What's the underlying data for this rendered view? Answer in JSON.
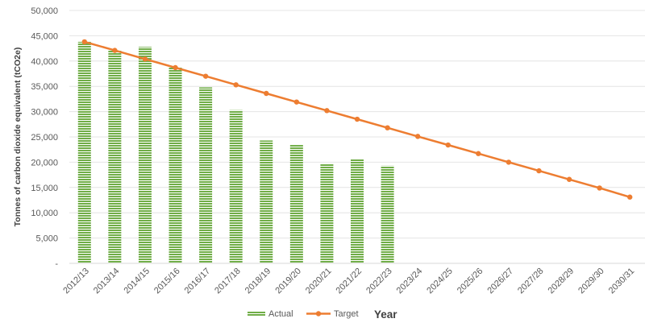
{
  "chart_data": {
    "type": "bar",
    "categories": [
      "2012/13",
      "2013/14",
      "2014/15",
      "2015/16",
      "2016/17",
      "2017/18",
      "2018/19",
      "2019/20",
      "2020/21",
      "2021/22",
      "2022/23",
      "2023/24",
      "2024/25",
      "2025/26",
      "2026/27",
      "2027/28",
      "2028/29",
      "2029/30",
      "2030/31"
    ],
    "series": [
      {
        "name": "Actual",
        "type": "bar",
        "color": "#70AD47",
        "values": [
          43800,
          42200,
          42800,
          38800,
          34800,
          30300,
          24300,
          23400,
          19700,
          20600,
          19300,
          null,
          null,
          null,
          null,
          null,
          null,
          null,
          null
        ]
      },
      {
        "name": "Target",
        "type": "line",
        "color": "#ED7D31",
        "values": [
          43800,
          42100,
          40400,
          38700,
          37000,
          35300,
          33600,
          31900,
          30200,
          28500,
          26800,
          25100,
          23400,
          21700,
          20000,
          18300,
          16600,
          14900,
          13100
        ]
      }
    ],
    "xlabel": "Year",
    "ylabel": "Tonnes of carbon dioxide equivalent (tCO2e)",
    "ylim": [
      0,
      50000
    ],
    "yticks": [
      0,
      5000,
      10000,
      15000,
      20000,
      25000,
      30000,
      35000,
      40000,
      45000,
      50000
    ],
    "ytick_labels": [
      "-",
      "5,000",
      "10,000",
      "15,000",
      "20,000",
      "25,000",
      "30,000",
      "35,000",
      "40,000",
      "45,000",
      "50,000"
    ],
    "grid": true,
    "legend_position": "bottom"
  }
}
